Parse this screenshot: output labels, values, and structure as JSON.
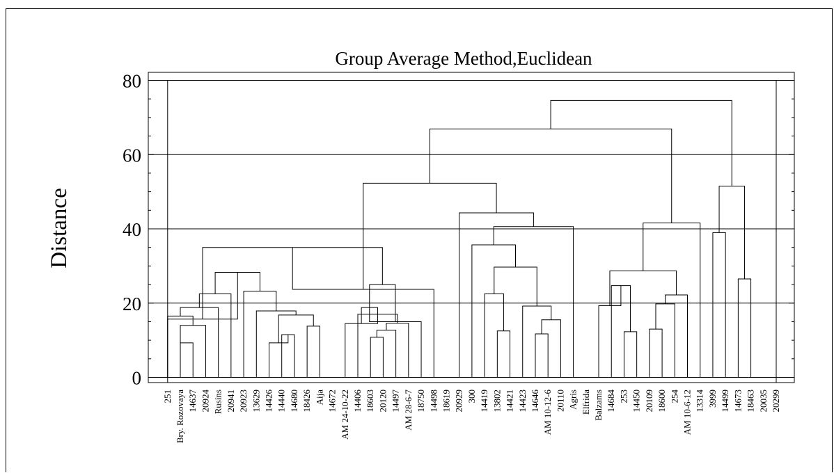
{
  "chart_data": {
    "type": "dendrogram",
    "title": "Group Average Method,Euclidean",
    "ylabel": "Distance",
    "xlabel": "",
    "ylim": [
      0,
      80
    ],
    "yticks": [
      0,
      20,
      40,
      60,
      80
    ],
    "grid": true,
    "leaves": [
      "251",
      "Bry. Rozovaya",
      "14637",
      "20924",
      "Rusins",
      "20941",
      "20923",
      "13629",
      "14426",
      "14440",
      "14680",
      "18426",
      "Aija",
      "14672",
      "AM 24-10-22",
      "14406",
      "18603",
      "20120",
      "14497",
      "AM 28-6-7",
      "18750",
      "14498",
      "18619",
      "20929",
      "300",
      "14419",
      "13802",
      "14421",
      "14423",
      "14646",
      "AM 10-12-6",
      "20110",
      "Agris",
      "Elfrida",
      "Balzams",
      "14684",
      "253",
      "14450",
      "20109",
      "18600",
      "254",
      "AM 10-6-12",
      "13314",
      "3999",
      "14499",
      "14673",
      "18463",
      "20035",
      "20299"
    ],
    "merges": [
      {
        "a": "L1",
        "b": "L2",
        "height": 9.3
      },
      {
        "a": "L1",
        "b": "L3",
        "height": 14.0
      },
      {
        "a": "L0",
        "b": "N1",
        "height": 16.5
      },
      {
        "a": "N2",
        "b": "L4",
        "height": 18.8
      },
      {
        "a": "N3",
        "b": "L5",
        "height": 22.5
      },
      {
        "a": "L9",
        "b": "L10",
        "height": 11.5
      },
      {
        "a": "L11",
        "b": "L12",
        "height": 13.8
      },
      {
        "a": "L8",
        "b": "N5",
        "height": 9.3
      },
      {
        "a": "N7",
        "b": "N6",
        "height": 16.8
      },
      {
        "a": "L7",
        "b": "N8",
        "height": 17.9
      },
      {
        "a": "N9",
        "b": "L6",
        "height": 23.2
      },
      {
        "a": "N4",
        "b": "N10",
        "height": 28.3
      },
      {
        "a": "L0",
        "b": "N11",
        "height": 15.7
      },
      {
        "a": "L16",
        "b": "L17",
        "height": 10.8
      },
      {
        "a": "L18",
        "b": "N13",
        "height": 12.7
      },
      {
        "a": "N14",
        "b": "L19",
        "height": 14.6
      },
      {
        "a": "L15",
        "b": "N15",
        "height": 17.0
      },
      {
        "a": "L14",
        "b": "N16",
        "height": 14.5
      },
      {
        "a": "N17",
        "b": "N16",
        "height": 18.8
      },
      {
        "a": "N18",
        "b": "L20",
        "height": 15.0
      },
      {
        "a": "N18",
        "b": "N19",
        "height": 25.0
      },
      {
        "a": "N12",
        "b": "N20",
        "height": 35.0
      },
      {
        "a": "N21",
        "b": "L21",
        "height": 23.7
      },
      {
        "a": "L26",
        "b": "L27",
        "height": 12.5
      },
      {
        "a": "L25",
        "b": "N23",
        "height": 22.5
      },
      {
        "a": "L29",
        "b": "L30",
        "height": 11.7
      },
      {
        "a": "N25",
        "b": "L31",
        "height": 15.5
      },
      {
        "a": "L28",
        "b": "N26",
        "height": 19.2
      },
      {
        "a": "N24",
        "b": "N27",
        "height": 29.7
      },
      {
        "a": "L24",
        "b": "N28",
        "height": 35.7
      },
      {
        "a": "N29",
        "b": "L32",
        "height": 40.6
      },
      {
        "a": "L23",
        "b": "N30",
        "height": 44.3
      },
      {
        "a": "N22",
        "b": "N31",
        "height": 52.3
      },
      {
        "a": "L36",
        "b": "L37",
        "height": 12.3
      },
      {
        "a": "L35",
        "b": "N33",
        "height": 24.7
      },
      {
        "a": "L34",
        "b": "N34",
        "height": 19.3
      },
      {
        "a": "L38",
        "b": "L39",
        "height": 13.0
      },
      {
        "a": "N36",
        "b": "L40",
        "height": 19.8
      },
      {
        "a": "N37",
        "b": "L41",
        "height": 22.2
      },
      {
        "a": "N35",
        "b": "N38",
        "height": 28.7
      },
      {
        "a": "N39",
        "b": "L42",
        "height": 41.6
      },
      {
        "a": "N32",
        "b": "N40",
        "height": 66.9
      },
      {
        "a": "L43",
        "b": "L44",
        "height": 39.0
      },
      {
        "a": "L45",
        "b": "L46",
        "height": 26.5
      },
      {
        "a": "N42",
        "b": "N43",
        "height": 51.5
      },
      {
        "a": "N41",
        "b": "N44",
        "height": 74.6
      }
    ]
  }
}
